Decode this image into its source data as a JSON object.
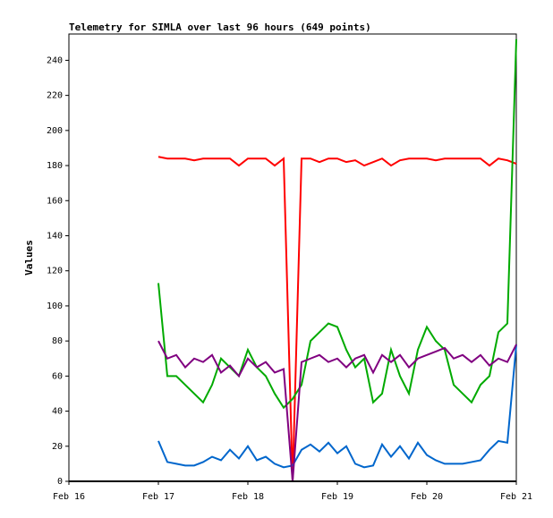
{
  "chart_data": {
    "type": "line",
    "title": "Telemetry for SIMLA over last 96 hours (649 points)",
    "y_label": "Values",
    "x": [
      17.0,
      17.1,
      17.2,
      17.3,
      17.4,
      17.5,
      17.6,
      17.7,
      17.8,
      17.9,
      18.0,
      18.1,
      18.2,
      18.3,
      18.4,
      18.5,
      18.6,
      18.7,
      18.8,
      18.9,
      19.0,
      19.1,
      19.2,
      19.3,
      19.4,
      19.5,
      19.6,
      19.7,
      19.8,
      19.9,
      20.0,
      20.1,
      20.2,
      20.3,
      20.4,
      20.5,
      20.6,
      20.7,
      20.8,
      20.9,
      21.0
    ],
    "series": [
      {
        "color": "#ff0000",
        "values": [
          185,
          184,
          184,
          184,
          183,
          184,
          184,
          184,
          184,
          180,
          184,
          184,
          184,
          180,
          184,
          0,
          184,
          184,
          182,
          184,
          184,
          182,
          183,
          180,
          182,
          184,
          180,
          183,
          184,
          184,
          184,
          183,
          184,
          184,
          184,
          184,
          184,
          180,
          184,
          183,
          181
        ]
      },
      {
        "color": "#00aa00",
        "values": [
          113,
          60,
          60,
          55,
          50,
          45,
          55,
          70,
          65,
          60,
          75,
          65,
          60,
          50,
          42,
          47,
          55,
          80,
          85,
          90,
          88,
          75,
          65,
          70,
          45,
          50,
          75,
          60,
          50,
          75,
          88,
          80,
          75,
          55,
          50,
          45,
          55,
          60,
          85,
          90,
          252
        ]
      },
      {
        "color": "#0066cc",
        "values": [
          23,
          11,
          10,
          9,
          9,
          11,
          14,
          12,
          18,
          13,
          20,
          12,
          14,
          10,
          8,
          9,
          18,
          21,
          17,
          22,
          16,
          20,
          10,
          8,
          9,
          21,
          14,
          20,
          13,
          22,
          15,
          12,
          10,
          10,
          10,
          11,
          12,
          18,
          23,
          22,
          78
        ]
      },
      {
        "color": "#800080",
        "values": [
          80,
          70,
          72,
          65,
          70,
          68,
          72,
          62,
          66,
          60,
          70,
          65,
          68,
          62,
          64,
          0,
          68,
          70,
          72,
          68,
          70,
          65,
          70,
          72,
          62,
          72,
          68,
          72,
          65,
          70,
          72,
          74,
          76,
          70,
          72,
          68,
          72,
          66,
          70,
          68,
          78
        ]
      }
    ],
    "xlim": [
      16,
      21
    ],
    "xticks": [
      {
        "value": 16,
        "label": "Feb 16"
      },
      {
        "value": 17,
        "label": "Feb 17"
      },
      {
        "value": 18,
        "label": "Feb 18"
      },
      {
        "value": 19,
        "label": "Feb 19"
      },
      {
        "value": 20,
        "label": "Feb 20"
      },
      {
        "value": 21,
        "label": "Feb 21"
      }
    ],
    "ylim": [
      0,
      255
    ],
    "yticks": [
      0,
      20,
      40,
      60,
      80,
      100,
      120,
      140,
      160,
      180,
      200,
      220,
      240
    ]
  }
}
